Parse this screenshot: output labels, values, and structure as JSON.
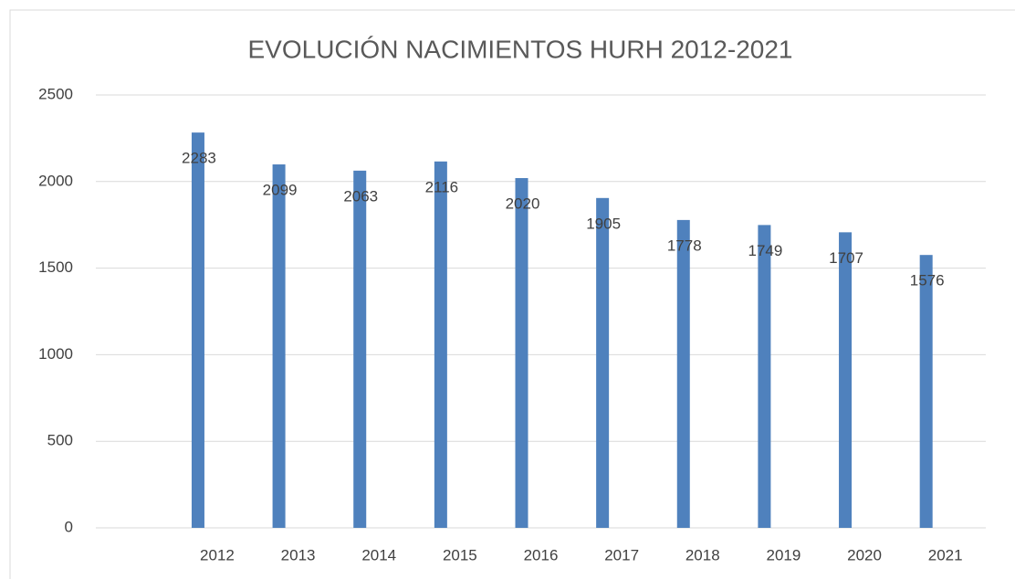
{
  "chart_data": {
    "type": "bar",
    "title": "EVOLUCIÓN NACIMIENTOS HURH 2012-2021",
    "categories": [
      null,
      "2012",
      "2013",
      "2014",
      "2015",
      "2016",
      "2017",
      "2018",
      "2019",
      "2020",
      "2021"
    ],
    "values": [
      null,
      2283,
      2099,
      2063,
      2116,
      2020,
      1905,
      1778,
      1749,
      1707,
      1576
    ],
    "color": "#4f81bd",
    "ylim": [
      0,
      2500
    ],
    "yticks": [
      0,
      500,
      1000,
      1500,
      2000,
      2500
    ],
    "grid": true
  }
}
